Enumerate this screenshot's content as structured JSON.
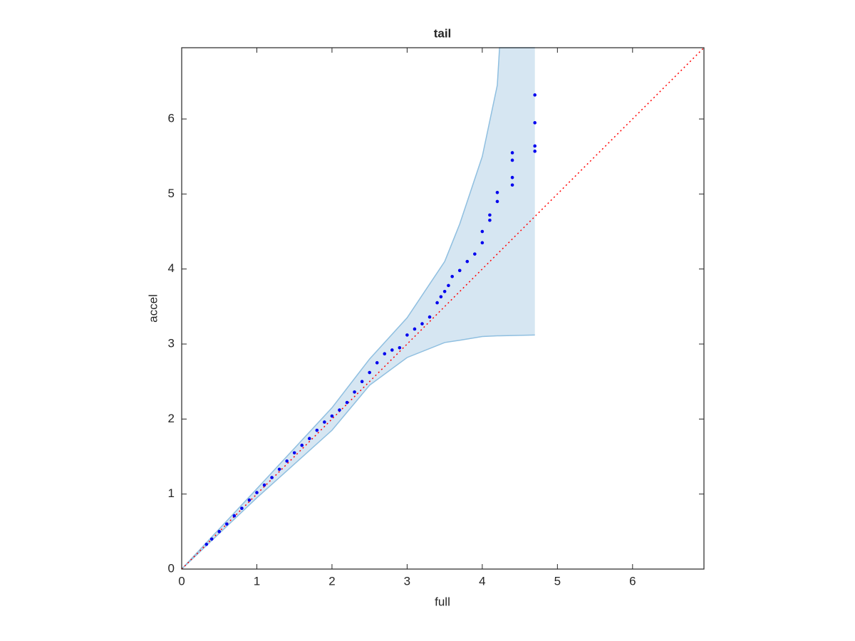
{
  "chart_data": {
    "type": "scatter",
    "title": "tail",
    "x_label": "full",
    "y_label": "accel",
    "xlim": [
      0,
      6.95
    ],
    "ylim": [
      0,
      6.95
    ],
    "xticks": [
      0,
      1,
      2,
      3,
      4,
      5,
      6
    ],
    "yticks": [
      0,
      1,
      2,
      3,
      4,
      5,
      6
    ],
    "grid": false,
    "band": {
      "color": "#d6e6f2",
      "edge_color": "#8fbfe0",
      "x": [
        0,
        1,
        2,
        2.5,
        3,
        3.5,
        3.7,
        4,
        4.2,
        4.23,
        4.7
      ],
      "upper": [
        0,
        1.07,
        2.15,
        2.8,
        3.35,
        4.1,
        4.6,
        5.5,
        6.45,
        6.95,
        6.95
      ],
      "lower": [
        0,
        0.95,
        1.85,
        2.45,
        2.82,
        3.02,
        3.05,
        3.1,
        3.11,
        3.11,
        3.12
      ]
    },
    "reference": {
      "color": "#ff0000",
      "x": [
        0,
        6.95
      ],
      "y": [
        0,
        6.95
      ]
    },
    "points": {
      "color": "#0000ee",
      "x": [
        0.33,
        0.4,
        0.5,
        0.6,
        0.7,
        0.8,
        0.9,
        1.0,
        1.1,
        1.2,
        1.3,
        1.4,
        1.5,
        1.6,
        1.7,
        1.8,
        1.9,
        2.0,
        2.1,
        2.2,
        2.3,
        2.4,
        2.5,
        2.6,
        2.7,
        2.8,
        2.9,
        3.0,
        3.1,
        3.2,
        3.3,
        3.4,
        3.45,
        3.5,
        3.55,
        3.6,
        3.7,
        3.8,
        3.9,
        4.0,
        4.0,
        4.1,
        4.1,
        4.2,
        4.2,
        4.4,
        4.4,
        4.4,
        4.4,
        4.7,
        4.7,
        4.7,
        4.7
      ],
      "y": [
        0.33,
        0.4,
        0.5,
        0.6,
        0.71,
        0.81,
        0.92,
        1.02,
        1.12,
        1.22,
        1.33,
        1.44,
        1.55,
        1.65,
        1.74,
        1.85,
        1.96,
        2.04,
        2.12,
        2.22,
        2.36,
        2.5,
        2.62,
        2.75,
        2.87,
        2.92,
        2.95,
        3.12,
        3.2,
        3.27,
        3.36,
        3.55,
        3.63,
        3.7,
        3.78,
        3.9,
        3.98,
        4.1,
        4.2,
        4.35,
        4.5,
        4.65,
        4.72,
        4.9,
        5.02,
        5.12,
        5.22,
        5.45,
        5.55,
        5.57,
        5.64,
        5.95,
        6.32
      ]
    }
  }
}
